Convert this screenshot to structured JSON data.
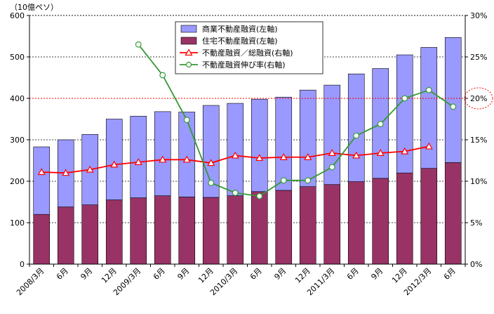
{
  "chart_data": {
    "type": "bar+line",
    "unit_label": "（10億ペソ）",
    "categories": [
      "2008/3月",
      "6月",
      "9月",
      "12月",
      "2009/3月",
      "6月",
      "9月",
      "12月",
      "2010/3月",
      "6月",
      "9月",
      "12月",
      "2011/3月",
      "6月",
      "9月",
      "12月",
      "2012/3月",
      "6月"
    ],
    "y_left": {
      "min": 0,
      "max": 600,
      "step": 100,
      "ticks": [
        "0",
        "100",
        "200",
        "300",
        "400",
        "500",
        "600"
      ]
    },
    "y_right": {
      "min": 0,
      "max": 30,
      "step": 5,
      "ticks": [
        "0%",
        "5%",
        "10%",
        "15%",
        "20%",
        "25%",
        "30%"
      ]
    },
    "reference_line": {
      "value": 20,
      "axis": "right",
      "color": "#ff0000"
    },
    "reference_label": "20%",
    "series": [
      {
        "name": "商業不動産融資(左軸)",
        "type": "bar-stacked",
        "axis": "left",
        "color": "#9999ff",
        "values": [
          163,
          162,
          170,
          195,
          197,
          203,
          205,
          222,
          223,
          223,
          225,
          233,
          240,
          260,
          265,
          285,
          292,
          302
        ]
      },
      {
        "name": "住宅不動産融資(左軸)",
        "type": "bar-stacked",
        "axis": "left",
        "color": "#993366",
        "values": [
          120,
          138,
          143,
          155,
          160,
          165,
          162,
          161,
          165,
          175,
          178,
          187,
          192,
          199,
          207,
          220,
          231,
          245
        ]
      },
      {
        "name": "不動産融資／総融資(右軸)",
        "type": "line",
        "axis": "right",
        "color": "#ff0000",
        "marker": "triangle",
        "values": [
          11.1,
          11.0,
          11.4,
          12.0,
          12.3,
          12.6,
          12.6,
          12.2,
          13.1,
          12.8,
          12.9,
          12.9,
          13.4,
          13.1,
          13.4,
          13.6,
          14.2,
          null
        ]
      },
      {
        "name": "不動産融資伸び率(右軸)",
        "type": "line",
        "axis": "right",
        "color": "#339933",
        "marker": "circle",
        "values": [
          null,
          null,
          null,
          null,
          26.5,
          22.8,
          17.4,
          9.8,
          8.6,
          8.2,
          10.1,
          10.1,
          11.7,
          15.5,
          16.9,
          20.0,
          21.0,
          19.0
        ]
      }
    ],
    "legend_position": "top-center",
    "grid": "dashed-horizontal"
  }
}
